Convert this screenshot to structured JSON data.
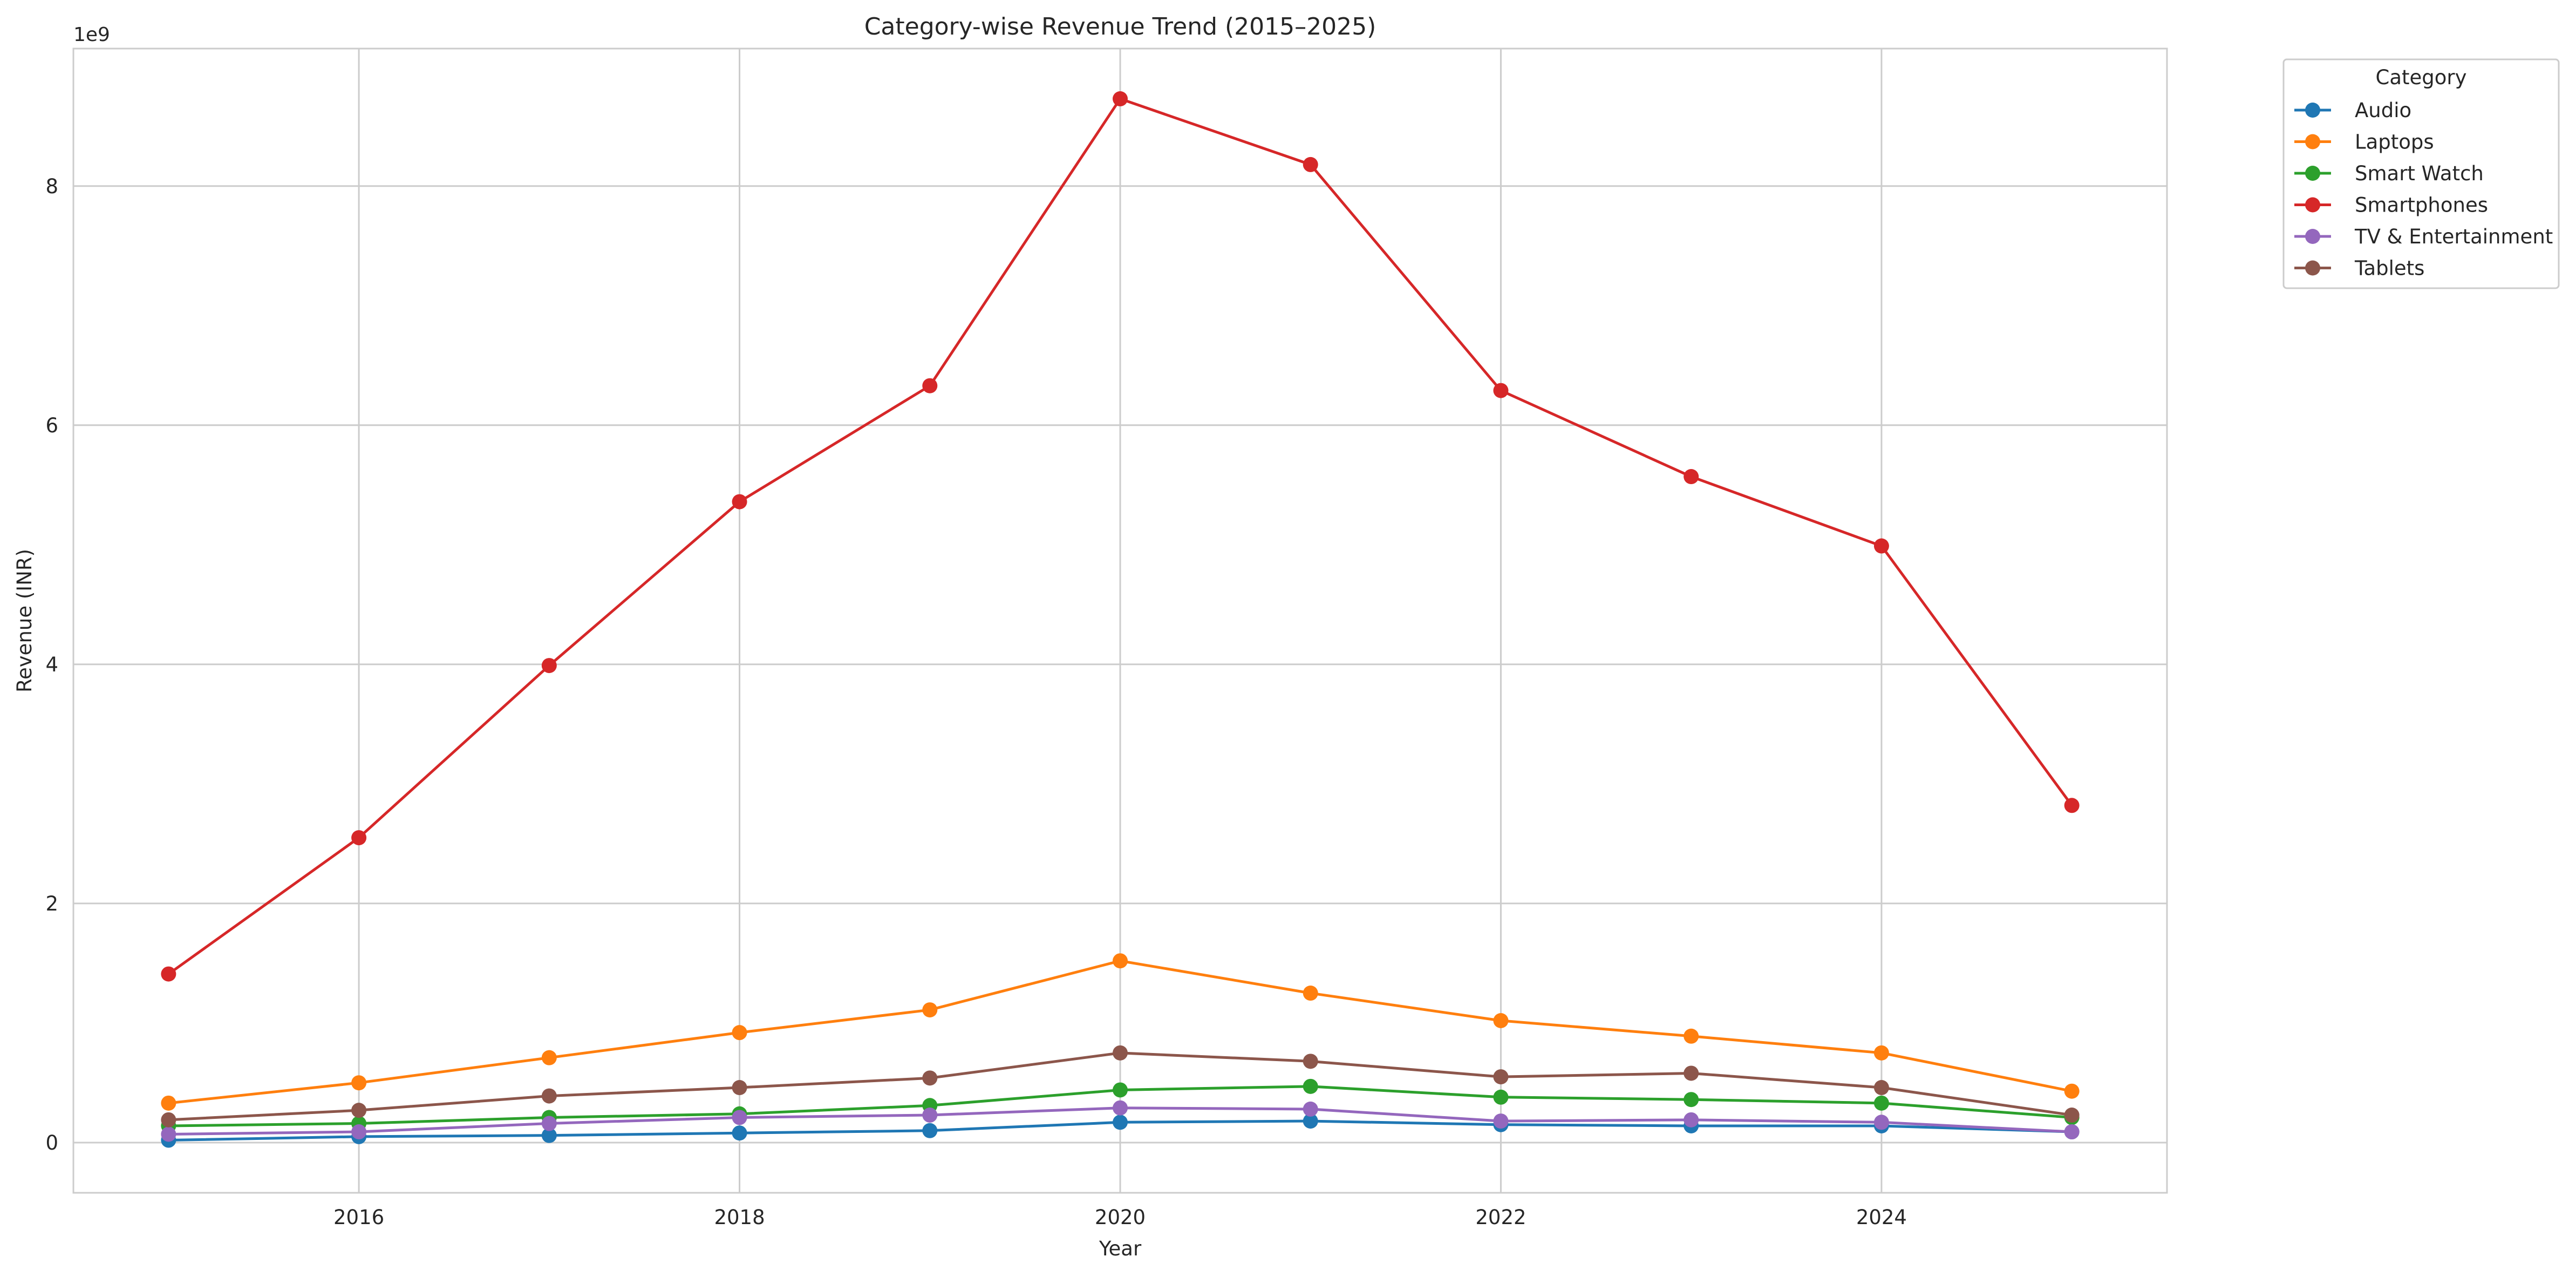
{
  "chart_data": {
    "type": "line",
    "title": "Category-wise Revenue Trend (2015–2025)",
    "xlabel": "Year",
    "ylabel": "Revenue (INR)",
    "y_offset_label": "1e9",
    "x": [
      2015,
      2016,
      2017,
      2018,
      2019,
      2020,
      2021,
      2022,
      2023,
      2024,
      2025
    ],
    "xlim": [
      2014.5,
      2025.5
    ],
    "ylim": [
      -0.42,
      9.15
    ],
    "x_ticks": [
      2016,
      2018,
      2020,
      2022,
      2024
    ],
    "x_tick_labels": [
      "2016",
      "2018",
      "2020",
      "2022",
      "2024"
    ],
    "y_ticks": [
      0,
      2,
      4,
      6,
      8
    ],
    "y_tick_labels": [
      "0",
      "2",
      "4",
      "6",
      "8"
    ],
    "y_unit_multiplier": 1000000000,
    "grid": true,
    "markers": "circle",
    "legend": {
      "title": "Category",
      "placement": "outside-top-right"
    },
    "series": [
      {
        "name": "Audio",
        "color": "#1f77b4",
        "values": [
          0.02,
          0.05,
          0.06,
          0.08,
          0.1,
          0.17,
          0.18,
          0.15,
          0.14,
          0.14,
          0.09
        ]
      },
      {
        "name": "Laptops",
        "color": "#ff7f0e",
        "values": [
          0.33,
          0.5,
          0.71,
          0.92,
          1.11,
          1.52,
          1.25,
          1.02,
          0.89,
          0.75,
          0.43
        ]
      },
      {
        "name": "Smart Watch",
        "color": "#2ca02c",
        "values": [
          0.14,
          0.16,
          0.21,
          0.24,
          0.31,
          0.44,
          0.47,
          0.38,
          0.36,
          0.33,
          0.21
        ]
      },
      {
        "name": "Smartphones",
        "color": "#d62728",
        "values": [
          1.41,
          2.55,
          3.99,
          5.36,
          6.33,
          8.73,
          8.18,
          6.29,
          5.57,
          4.99,
          2.82
        ]
      },
      {
        "name": "TV & Entertainment",
        "color": "#9467bd",
        "values": [
          0.07,
          0.09,
          0.16,
          0.21,
          0.23,
          0.29,
          0.28,
          0.18,
          0.19,
          0.17,
          0.09
        ]
      },
      {
        "name": "Tablets",
        "color": "#8c564b",
        "values": [
          0.19,
          0.27,
          0.39,
          0.46,
          0.54,
          0.75,
          0.68,
          0.55,
          0.58,
          0.46,
          0.23
        ]
      }
    ]
  }
}
